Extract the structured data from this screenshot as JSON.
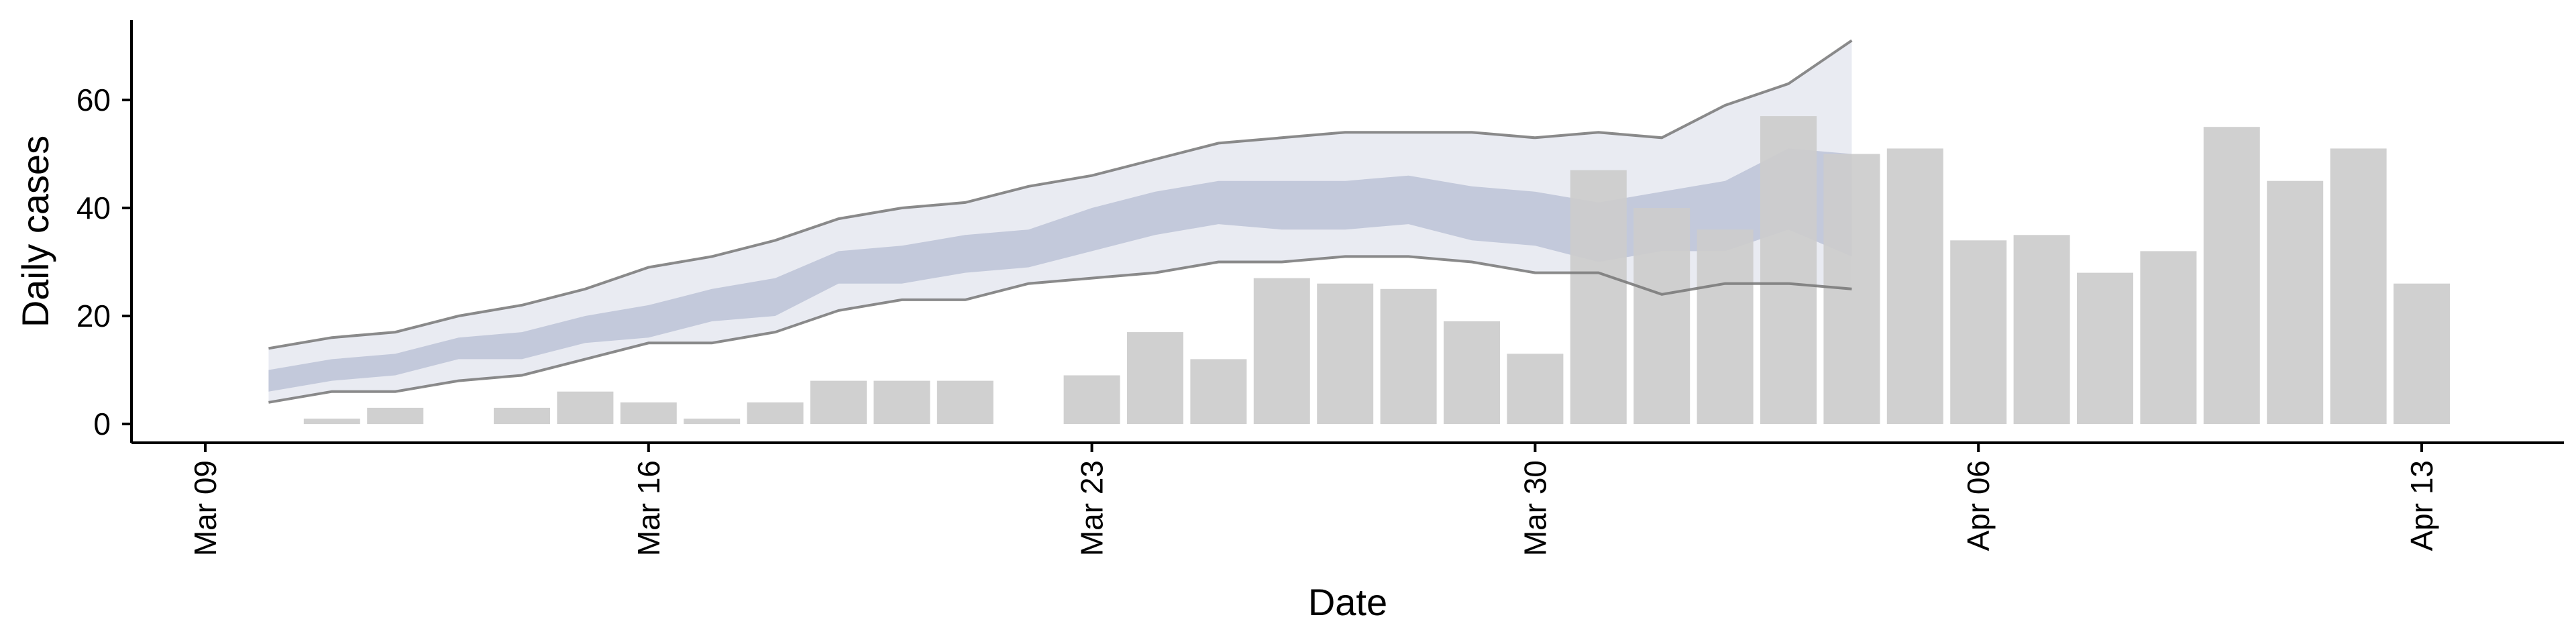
{
  "chart_data": {
    "type": "bar",
    "xlabel": "Date",
    "ylabel": "Daily cases",
    "x_ticks": [
      "Mar 09",
      "Mar 16",
      "Mar 23",
      "Mar 30",
      "Apr 06",
      "Apr 13"
    ],
    "x_tick_dates": [
      "2020-03-09",
      "2020-03-16",
      "2020-03-23",
      "2020-03-30",
      "2020-04-06",
      "2020-04-13"
    ],
    "y_ticks": [
      0,
      20,
      40,
      60
    ],
    "xlim": [
      "2020-03-08",
      "2020-04-15"
    ],
    "ylim": [
      -3,
      75
    ],
    "grid": false,
    "colors": {
      "bars": "#cccccc",
      "inner_band": "#c3c9db",
      "outer_band": "#e9ebf2",
      "band_lines": "#777777"
    },
    "bars": {
      "dates": [
        "2020-03-11",
        "2020-03-12",
        "2020-03-13",
        "2020-03-14",
        "2020-03-15",
        "2020-03-16",
        "2020-03-17",
        "2020-03-18",
        "2020-03-19",
        "2020-03-20",
        "2020-03-21",
        "2020-03-22",
        "2020-03-23",
        "2020-03-24",
        "2020-03-25",
        "2020-03-26",
        "2020-03-27",
        "2020-03-28",
        "2020-03-29",
        "2020-03-30",
        "2020-03-31",
        "2020-04-01",
        "2020-04-02",
        "2020-04-03",
        "2020-04-04",
        "2020-04-05",
        "2020-04-06",
        "2020-04-07",
        "2020-04-08",
        "2020-04-09",
        "2020-04-10",
        "2020-04-11",
        "2020-04-12",
        "2020-04-13"
      ],
      "values": [
        1,
        3,
        0,
        3,
        6,
        4,
        1,
        4,
        8,
        8,
        8,
        0,
        9,
        17,
        12,
        27,
        26,
        25,
        19,
        13,
        47,
        40,
        36,
        57,
        50,
        51,
        34,
        35,
        28,
        32,
        55,
        45,
        51,
        26
      ]
    },
    "estimate": {
      "dates": [
        "2020-03-10",
        "2020-03-11",
        "2020-03-12",
        "2020-03-13",
        "2020-03-14",
        "2020-03-15",
        "2020-03-16",
        "2020-03-17",
        "2020-03-18",
        "2020-03-19",
        "2020-03-20",
        "2020-03-21",
        "2020-03-22",
        "2020-03-23",
        "2020-03-24",
        "2020-03-25",
        "2020-03-26",
        "2020-03-27",
        "2020-03-28",
        "2020-03-29",
        "2020-03-30",
        "2020-03-31",
        "2020-04-01",
        "2020-04-02",
        "2020-04-03",
        "2020-04-04"
      ],
      "outer_upper": [
        14,
        16,
        17,
        20,
        22,
        25,
        29,
        31,
        34,
        38,
        40,
        41,
        44,
        46,
        49,
        52,
        53,
        54,
        54,
        54,
        53,
        54,
        53,
        59,
        63,
        71
      ],
      "outer_lower": [
        4,
        6,
        6,
        8,
        9,
        12,
        15,
        15,
        17,
        21,
        23,
        23,
        26,
        27,
        28,
        30,
        30,
        31,
        31,
        30,
        28,
        28,
        24,
        26,
        26,
        25
      ],
      "inner_upper": [
        10,
        12,
        13,
        16,
        17,
        20,
        22,
        25,
        27,
        32,
        33,
        35,
        36,
        40,
        43,
        45,
        45,
        45,
        46,
        44,
        43,
        41,
        43,
        45,
        51,
        50
      ],
      "inner_lower": [
        6,
        8,
        9,
        12,
        12,
        15,
        16,
        19,
        20,
        26,
        26,
        28,
        29,
        32,
        35,
        37,
        36,
        36,
        37,
        34,
        33,
        30,
        32,
        32,
        36,
        31
      ]
    }
  }
}
